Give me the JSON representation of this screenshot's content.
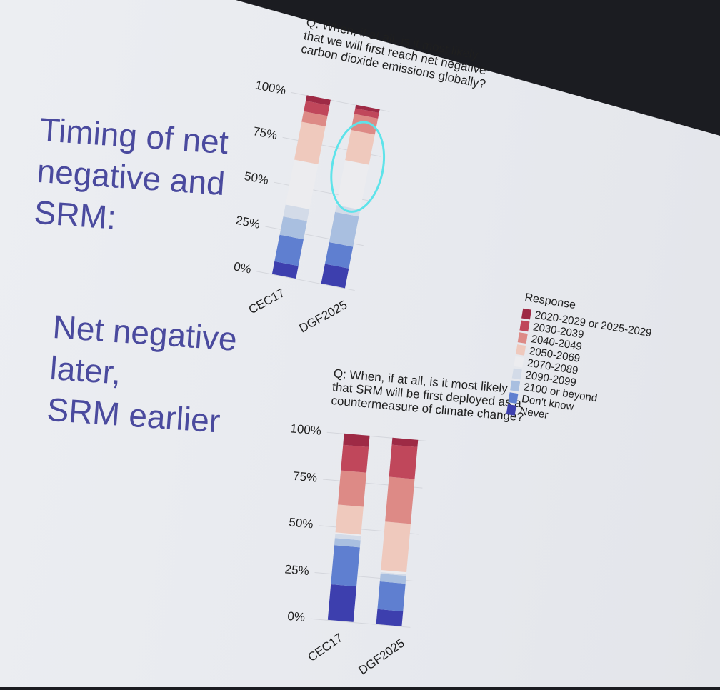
{
  "left_text": {
    "heading_lines": [
      "Timing of net",
      "negative and",
      "SRM:"
    ],
    "subheading_lines": [
      "Net negative",
      "later,",
      "SRM earlier"
    ]
  },
  "legend": {
    "title": "Response",
    "items": [
      {
        "label": "2020-2029 or 2025-2029",
        "color": "#9e2a45"
      },
      {
        "label": "2030-2039",
        "color": "#c0475b"
      },
      {
        "label": "2040-2049",
        "color": "#dd8a86"
      },
      {
        "label": "2050-2069",
        "color": "#efc9bd"
      },
      {
        "label": "2070-2089",
        "color": "#ececef"
      },
      {
        "label": "2090-2099",
        "color": "#d3dbe8"
      },
      {
        "label": "2100 or beyond",
        "color": "#a9bfe0"
      },
      {
        "label": "Don't know",
        "color": "#5f7fd0"
      },
      {
        "label": "Never",
        "color": "#3d3fae"
      }
    ]
  },
  "chart_data": [
    {
      "type": "bar",
      "stacked": true,
      "question_lines": [
        "Q: When, if at all, is it most likely",
        "that we will first reach net negative",
        "carbon dioxide emissions globally?"
      ],
      "categories": [
        "CEC17",
        "DGF2025"
      ],
      "yticks": [
        "0%",
        "25%",
        "50%",
        "75%",
        "100%"
      ],
      "ylim": [
        0,
        100
      ],
      "series": [
        {
          "name": "Never",
          "values": [
            7,
            11
          ]
        },
        {
          "name": "Don't know",
          "values": [
            15,
            12
          ]
        },
        {
          "name": "2100 or beyond",
          "values": [
            10,
            17
          ]
        },
        {
          "name": "2090-2099",
          "values": [
            7,
            4
          ]
        },
        {
          "name": "2070-2089",
          "values": [
            25,
            25
          ]
        },
        {
          "name": "2050-2069",
          "values": [
            21,
            17
          ]
        },
        {
          "name": "2040-2049",
          "values": [
            6,
            9
          ]
        },
        {
          "name": "2030-2039",
          "values": [
            6,
            3
          ]
        },
        {
          "name": "2020-2029 or 2025-2029",
          "values": [
            3,
            2
          ]
        }
      ],
      "annotation": "circle around DGF2025 upper band"
    },
    {
      "type": "bar",
      "stacked": true,
      "question_lines": [
        "Q: When, if at all, is it most likely",
        "that SRM will be first deployed as a",
        "countermeasure of climate change?"
      ],
      "categories": [
        "CEC17",
        "DGF2025"
      ],
      "yticks": [
        "0%",
        "25%",
        "50%",
        "75%",
        "100%"
      ],
      "ylim": [
        0,
        100
      ],
      "series": [
        {
          "name": "Never",
          "values": [
            19,
            8
          ]
        },
        {
          "name": "Don't know",
          "values": [
            21,
            15
          ]
        },
        {
          "name": "2100 or beyond",
          "values": [
            4,
            4
          ]
        },
        {
          "name": "2090-2099",
          "values": [
            2,
            1
          ]
        },
        {
          "name": "2070-2089",
          "values": [
            1,
            1
          ]
        },
        {
          "name": "2050-2069",
          "values": [
            15,
            26
          ]
        },
        {
          "name": "2040-2049",
          "values": [
            18,
            24
          ]
        },
        {
          "name": "2030-2039",
          "values": [
            14,
            17
          ]
        },
        {
          "name": "2020-2029 or 2025-2029",
          "values": [
            6,
            4
          ]
        }
      ]
    }
  ]
}
